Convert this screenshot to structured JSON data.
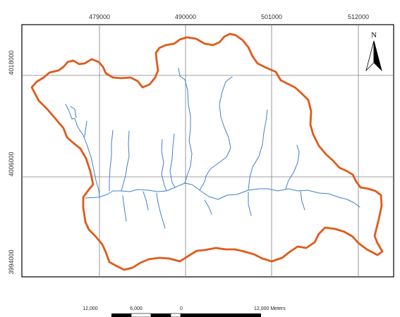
{
  "map": {
    "x_tick_labels": [
      "479000",
      "490000",
      "501000",
      "512000"
    ],
    "y_tick_labels": [
      "4018000",
      "4006000",
      "3994000"
    ],
    "north_label": "N",
    "colors": {
      "boundary": "#E05A1C",
      "streams": "#3F7FD0",
      "grid": "#808080",
      "frame": "#000000"
    }
  },
  "scale_bar": {
    "labels": [
      "12,000",
      "6,000",
      "0",
      "12,000 Meters"
    ]
  }
}
